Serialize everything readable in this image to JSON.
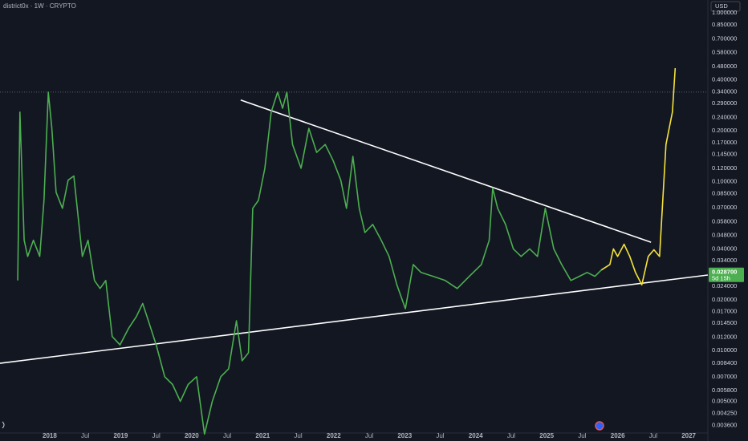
{
  "chart_data": {
    "type": "line",
    "title": "district0x · 1W · CRYPTO",
    "currency": "USD",
    "log_scale": true,
    "grid": false,
    "xlim": [
      2017.3,
      2027.27
    ],
    "xticks": [
      2018,
      {
        "value": 2018.5,
        "label": "Jul"
      },
      2019,
      {
        "value": 2019.5,
        "label": "Jul"
      },
      2020,
      {
        "value": 2020.5,
        "label": "Jul"
      },
      2021,
      {
        "value": 2021.5,
        "label": "Jul"
      },
      2022,
      {
        "value": 2022.5,
        "label": "Jul"
      },
      2023,
      {
        "value": 2023.5,
        "label": "Jul"
      },
      2024,
      {
        "value": 2024.5,
        "label": "Jul"
      },
      2025,
      {
        "value": 2025.5,
        "label": "Jul"
      },
      2026,
      {
        "value": 2026.5,
        "label": "Jul"
      },
      2027
    ],
    "ylim": [
      0.00325,
      1.19
    ],
    "yticks": [
      {
        "value": 1,
        "label": "1.000000"
      },
      {
        "value": 0.85,
        "label": "0.850000"
      },
      {
        "value": 0.7,
        "label": "0.700000"
      },
      {
        "value": 0.58,
        "label": "0.580000"
      },
      {
        "value": 0.48,
        "label": "0.480000"
      },
      {
        "value": 0.4,
        "label": "0.400000"
      },
      {
        "value": 0.34,
        "label": "0.340000"
      },
      {
        "value": 0.29,
        "label": "0.290000"
      },
      {
        "value": 0.24,
        "label": "0.240000"
      },
      {
        "value": 0.2,
        "label": "0.200000"
      },
      {
        "value": 0.17,
        "label": "0.170000"
      },
      {
        "value": 0.145,
        "label": "0.145000"
      },
      {
        "value": 0.12,
        "label": "0.120000"
      },
      {
        "value": 0.1,
        "label": "0.100000"
      },
      {
        "value": 0.085,
        "label": "0.085000"
      },
      {
        "value": 0.07,
        "label": "0.070000"
      },
      {
        "value": 0.058,
        "label": "0.058000"
      },
      {
        "value": 0.048,
        "label": "0.048000"
      },
      {
        "value": 0.04,
        "label": "0.040000"
      },
      {
        "value": 0.034,
        "label": "0.034000"
      },
      {
        "value": 0.024,
        "label": "0.024000"
      },
      {
        "value": 0.02,
        "label": "0.020000"
      },
      {
        "value": 0.017,
        "label": "0.017000"
      },
      {
        "value": 0.0145,
        "label": "0.014500"
      },
      {
        "value": 0.012,
        "label": "0.012000"
      },
      {
        "value": 0.01,
        "label": "0.010000"
      },
      {
        "value": 0.0084,
        "label": "0.008400"
      },
      {
        "value": 0.007,
        "label": "0.007000"
      },
      {
        "value": 0.0058,
        "label": "0.005800"
      },
      {
        "value": 0.005,
        "label": "0.005000"
      },
      {
        "value": 0.00425,
        "label": "0.004250"
      },
      {
        "value": 0.0036,
        "label": "0.003600"
      }
    ],
    "series": [
      {
        "color": "#4caf50",
        "x": [
          2017.55,
          2017.58,
          2017.64,
          2017.69,
          2017.77,
          2017.86,
          2017.92,
          2017.98,
          2018.03,
          2018.09,
          2018.18,
          2018.26,
          2018.34,
          2018.4,
          2018.46,
          2018.54,
          2018.63,
          2018.71,
          2018.79,
          2018.88,
          2018.99,
          2019.11,
          2019.22,
          2019.31,
          2019.39,
          2019.5,
          2019.62,
          2019.73,
          2019.84,
          2019.95,
          2020.07,
          2020.18,
          2020.29,
          2020.41,
          2020.52,
          2020.63,
          2020.71,
          2020.8,
          2020.86,
          2020.94,
          2021.03,
          2021.12,
          2021.21,
          2021.28,
          2021.34,
          2021.42,
          2021.54,
          2021.65,
          2021.76,
          2021.88,
          2021.99,
          2022.1,
          2022.18,
          2022.27,
          2022.36,
          2022.44,
          2022.55,
          2022.67,
          2022.78,
          2022.89,
          2023.01,
          2023.12,
          2023.23,
          2023.4,
          2023.57,
          2023.74,
          2023.91,
          2024.08,
          2024.19,
          2024.24,
          2024.31,
          2024.42,
          2024.53,
          2024.64,
          2024.76,
          2024.87,
          2024.98,
          2025.1,
          2025.21,
          2025.34,
          2025.46,
          2025.57,
          2025.68,
          2025.77
        ],
        "values": [
          0.026,
          0.258,
          0.045,
          0.0361,
          0.045,
          0.0361,
          0.0775,
          0.339,
          0.207,
          0.0865,
          0.0695,
          0.102,
          0.108,
          0.0623,
          0.0361,
          0.045,
          0.026,
          0.0233,
          0.026,
          0.0121,
          0.0108,
          0.0135,
          0.0159,
          0.019,
          0.015,
          0.0108,
          0.007,
          0.0063,
          0.005,
          0.0063,
          0.007,
          0.0032,
          0.005,
          0.007,
          0.0078,
          0.015,
          0.0087,
          0.0097,
          0.0695,
          0.0775,
          0.12,
          0.258,
          0.339,
          0.272,
          0.339,
          0.166,
          0.12,
          0.207,
          0.149,
          0.166,
          0.134,
          0.102,
          0.0695,
          0.141,
          0.0695,
          0.05,
          0.0558,
          0.0449,
          0.0361,
          0.0245,
          0.0177,
          0.0323,
          0.029,
          0.0275,
          0.026,
          0.0233,
          0.0275,
          0.0323,
          0.0449,
          0.0915,
          0.0695,
          0.0558,
          0.04,
          0.0361,
          0.04,
          0.0361,
          0.0695,
          0.04,
          0.0323,
          0.026,
          0.0275,
          0.029,
          0.0275,
          0.03
        ]
      },
      {
        "color": "#f5e33b",
        "x": [
          2025.77,
          2025.89,
          2025.94,
          2026.0,
          2026.09,
          2026.17,
          2026.25,
          2026.34,
          2026.43,
          2026.51,
          2026.59,
          2026.68,
          2026.77,
          2026.81
        ],
        "values": [
          0.03,
          0.0323,
          0.04,
          0.0361,
          0.0426,
          0.0361,
          0.029,
          0.0245,
          0.0361,
          0.0395,
          0.0361,
          0.166,
          0.258,
          0.47
        ]
      }
    ],
    "trendlines": [
      {
        "x": [
          2020.69,
          2026.47
        ],
        "values": [
          0.304,
          0.0438
        ]
      },
      {
        "x": [
          2017.3,
          2027.27
        ],
        "values": [
          0.0084,
          0.028
        ]
      }
    ],
    "hline": 0.339,
    "last_price": {
      "value": 0.0287,
      "label": "0.028700"
    },
    "countdown": "5d 15h"
  }
}
